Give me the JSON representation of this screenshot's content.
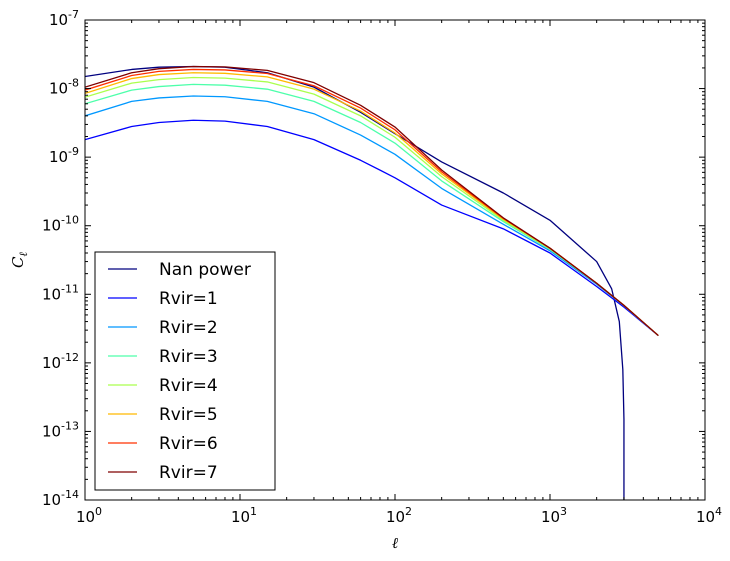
{
  "chart_data": {
    "type": "line",
    "title": "",
    "xlabel": "ℓ",
    "ylabel": "C",
    "ylabel_subscript": "ℓ",
    "xscale": "log",
    "yscale": "log",
    "xlim": [
      1,
      10000
    ],
    "ylim": [
      1e-14,
      1e-07
    ],
    "x_ticks": [
      {
        "base": "10",
        "exp": "0"
      },
      {
        "base": "10",
        "exp": "1"
      },
      {
        "base": "10",
        "exp": "2"
      },
      {
        "base": "10",
        "exp": "3"
      },
      {
        "base": "10",
        "exp": "4"
      }
    ],
    "y_ticks": [
      {
        "base": "10",
        "exp": "-14"
      },
      {
        "base": "10",
        "exp": "-13"
      },
      {
        "base": "10",
        "exp": "-12"
      },
      {
        "base": "10",
        "exp": "-11"
      },
      {
        "base": "10",
        "exp": "-10"
      },
      {
        "base": "10",
        "exp": "-9"
      },
      {
        "base": "10",
        "exp": "-8"
      },
      {
        "base": "10",
        "exp": "-7"
      }
    ],
    "grid": false,
    "legend_position": "lower-left",
    "series": [
      {
        "name": "Nan power",
        "color": "#00007f",
        "x": [
          1,
          2,
          3,
          5,
          8,
          15,
          30,
          60,
          100,
          200,
          500,
          1000,
          2000,
          2500,
          2800,
          2950,
          3000,
          3000
        ],
        "y": [
          1.5e-08,
          1.9e-08,
          2.05e-08,
          2.1e-08,
          2.05e-08,
          1.7e-08,
          1.05e-08,
          4.5e-09,
          2.2e-09,
          8.5e-10,
          3e-10,
          1.2e-10,
          3e-11,
          1.2e-11,
          4e-12,
          8e-13,
          1.5e-13,
          1e-14
        ]
      },
      {
        "name": "Rvir=1",
        "color": "#0000ff",
        "x": [
          1,
          2,
          3,
          5,
          8,
          15,
          30,
          60,
          100,
          200,
          500,
          1000,
          2000,
          3000,
          5000
        ],
        "y": [
          1.8e-09,
          2.8e-09,
          3.2e-09,
          3.45e-09,
          3.35e-09,
          2.8e-09,
          1.8e-09,
          9e-10,
          5e-10,
          2e-10,
          9e-11,
          4e-11,
          1.3e-11,
          6.5e-12,
          2.5e-12
        ]
      },
      {
        "name": "Rvir=2",
        "color": "#0098ff",
        "x": [
          1,
          2,
          3,
          5,
          8,
          15,
          30,
          60,
          100,
          200,
          500,
          1000,
          2000,
          3000,
          5000
        ],
        "y": [
          4e-09,
          6.5e-09,
          7.3e-09,
          7.8e-09,
          7.6e-09,
          6.5e-09,
          4.3e-09,
          2.1e-09,
          1.1e-09,
          3.5e-10,
          1.05e-10,
          4.3e-11,
          1.4e-11,
          6.8e-12,
          2.5e-12
        ]
      },
      {
        "name": "Rvir=3",
        "color": "#4dffaa",
        "x": [
          1,
          2,
          3,
          5,
          8,
          15,
          30,
          60,
          100,
          200,
          500,
          1000,
          2000,
          3000,
          5000
        ],
        "y": [
          6e-09,
          9.5e-09,
          1.07e-08,
          1.15e-08,
          1.12e-08,
          9.8e-09,
          6.5e-09,
          3.2e-09,
          1.6e-09,
          4.5e-10,
          1.15e-10,
          4.5e-11,
          1.45e-11,
          6.9e-12,
          2.5e-12
        ]
      },
      {
        "name": "Rvir=4",
        "color": "#aaff4d",
        "x": [
          1,
          2,
          3,
          5,
          8,
          15,
          30,
          60,
          100,
          200,
          500,
          1000,
          2000,
          3000,
          5000
        ],
        "y": [
          7.5e-09,
          1.2e-08,
          1.35e-08,
          1.45e-08,
          1.42e-08,
          1.25e-08,
          8.3e-09,
          4e-09,
          1.95e-09,
          5.2e-10,
          1.2e-10,
          4.6e-11,
          1.45e-11,
          6.9e-12,
          2.5e-12
        ]
      },
      {
        "name": "Rvir=5",
        "color": "#ffb900",
        "x": [
          1,
          2,
          3,
          5,
          8,
          15,
          30,
          60,
          100,
          200,
          500,
          1000,
          2000,
          3000,
          5000
        ],
        "y": [
          8.5e-09,
          1.4e-08,
          1.6e-08,
          1.7e-08,
          1.67e-08,
          1.48e-08,
          9.8e-09,
          4.7e-09,
          2.25e-09,
          5.7e-10,
          1.25e-10,
          4.7e-11,
          1.45e-11,
          6.9e-12,
          2.5e-12
        ]
      },
      {
        "name": "Rvir=6",
        "color": "#ff3000",
        "x": [
          1,
          2,
          3,
          5,
          8,
          15,
          30,
          60,
          100,
          200,
          500,
          1000,
          2000,
          3000,
          5000
        ],
        "y": [
          9.5e-09,
          1.55e-08,
          1.78e-08,
          1.9e-08,
          1.87e-08,
          1.66e-08,
          1.1e-08,
          5.2e-09,
          2.5e-09,
          6.1e-10,
          1.28e-10,
          4.7e-11,
          1.45e-11,
          6.9e-12,
          2.5e-12
        ]
      },
      {
        "name": "Rvir=7",
        "color": "#7f0000",
        "x": [
          1,
          2,
          3,
          5,
          8,
          15,
          30,
          60,
          100,
          200,
          500,
          1000,
          2000,
          3000,
          5000
        ],
        "y": [
          1.05e-08,
          1.7e-08,
          1.95e-08,
          2.1e-08,
          2.07e-08,
          1.84e-08,
          1.22e-08,
          5.7e-09,
          2.75e-09,
          6.5e-10,
          1.3e-10,
          4.7e-11,
          1.45e-11,
          6.9e-12,
          2.5e-12
        ]
      }
    ]
  }
}
